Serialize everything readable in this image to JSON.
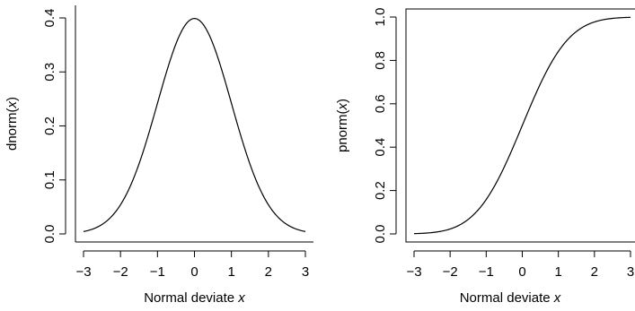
{
  "chart_data": [
    {
      "type": "line",
      "function": "dnorm",
      "xlabel_prefix": "Normal deviate ",
      "xlabel_var": "x",
      "ylabel_prefix": "dnorm(",
      "ylabel_var": "x",
      "ylabel_suffix": ")",
      "xlim": [
        -3,
        3
      ],
      "ylim": [
        0,
        0.4
      ],
      "xticks": [
        -3,
        -2,
        -1,
        0,
        1,
        2,
        3
      ],
      "xtick_labels": [
        "−3",
        "−2",
        "−1",
        "0",
        "1",
        "2",
        "3"
      ],
      "yticks": [
        0.0,
        0.1,
        0.2,
        0.3,
        0.4
      ],
      "ytick_labels": [
        "0.0",
        "0.1",
        "0.2",
        "0.3",
        "0.4"
      ],
      "series": [
        {
          "x": [
            -3,
            -2.5,
            -2,
            -1.5,
            -1,
            -0.5,
            0,
            0.5,
            1,
            1.5,
            2,
            2.5,
            3
          ],
          "y": [
            0.0044,
            0.0175,
            0.054,
            0.1295,
            0.242,
            0.3521,
            0.3989,
            0.3521,
            0.242,
            0.1295,
            0.054,
            0.0175,
            0.0044
          ]
        }
      ],
      "grid": false,
      "box": "open-right-top"
    },
    {
      "type": "line",
      "function": "pnorm",
      "xlabel_prefix": "Normal deviate ",
      "xlabel_var": "x",
      "ylabel_prefix": "pnorm(",
      "ylabel_var": "x",
      "ylabel_suffix": ")",
      "xlim": [
        -3,
        3
      ],
      "ylim": [
        0,
        1
      ],
      "xticks": [
        -3,
        -2,
        -1,
        0,
        1,
        2,
        3
      ],
      "xtick_labels": [
        "−3",
        "−2",
        "−1",
        "0",
        "1",
        "2",
        "3"
      ],
      "yticks": [
        0.0,
        0.2,
        0.4,
        0.6,
        0.8,
        1.0
      ],
      "ytick_labels": [
        "0.0",
        "0.2",
        "0.4",
        "0.6",
        "0.8",
        "1.0"
      ],
      "series": [
        {
          "x": [
            -3,
            -2.5,
            -2,
            -1.5,
            -1,
            -0.5,
            0,
            0.5,
            1,
            1.5,
            2,
            2.5,
            3
          ],
          "y": [
            0.0013,
            0.0062,
            0.0228,
            0.0668,
            0.1587,
            0.3085,
            0.5,
            0.6915,
            0.8413,
            0.9332,
            0.9772,
            0.9938,
            0.9987
          ]
        }
      ],
      "grid": false,
      "box": "full"
    }
  ]
}
